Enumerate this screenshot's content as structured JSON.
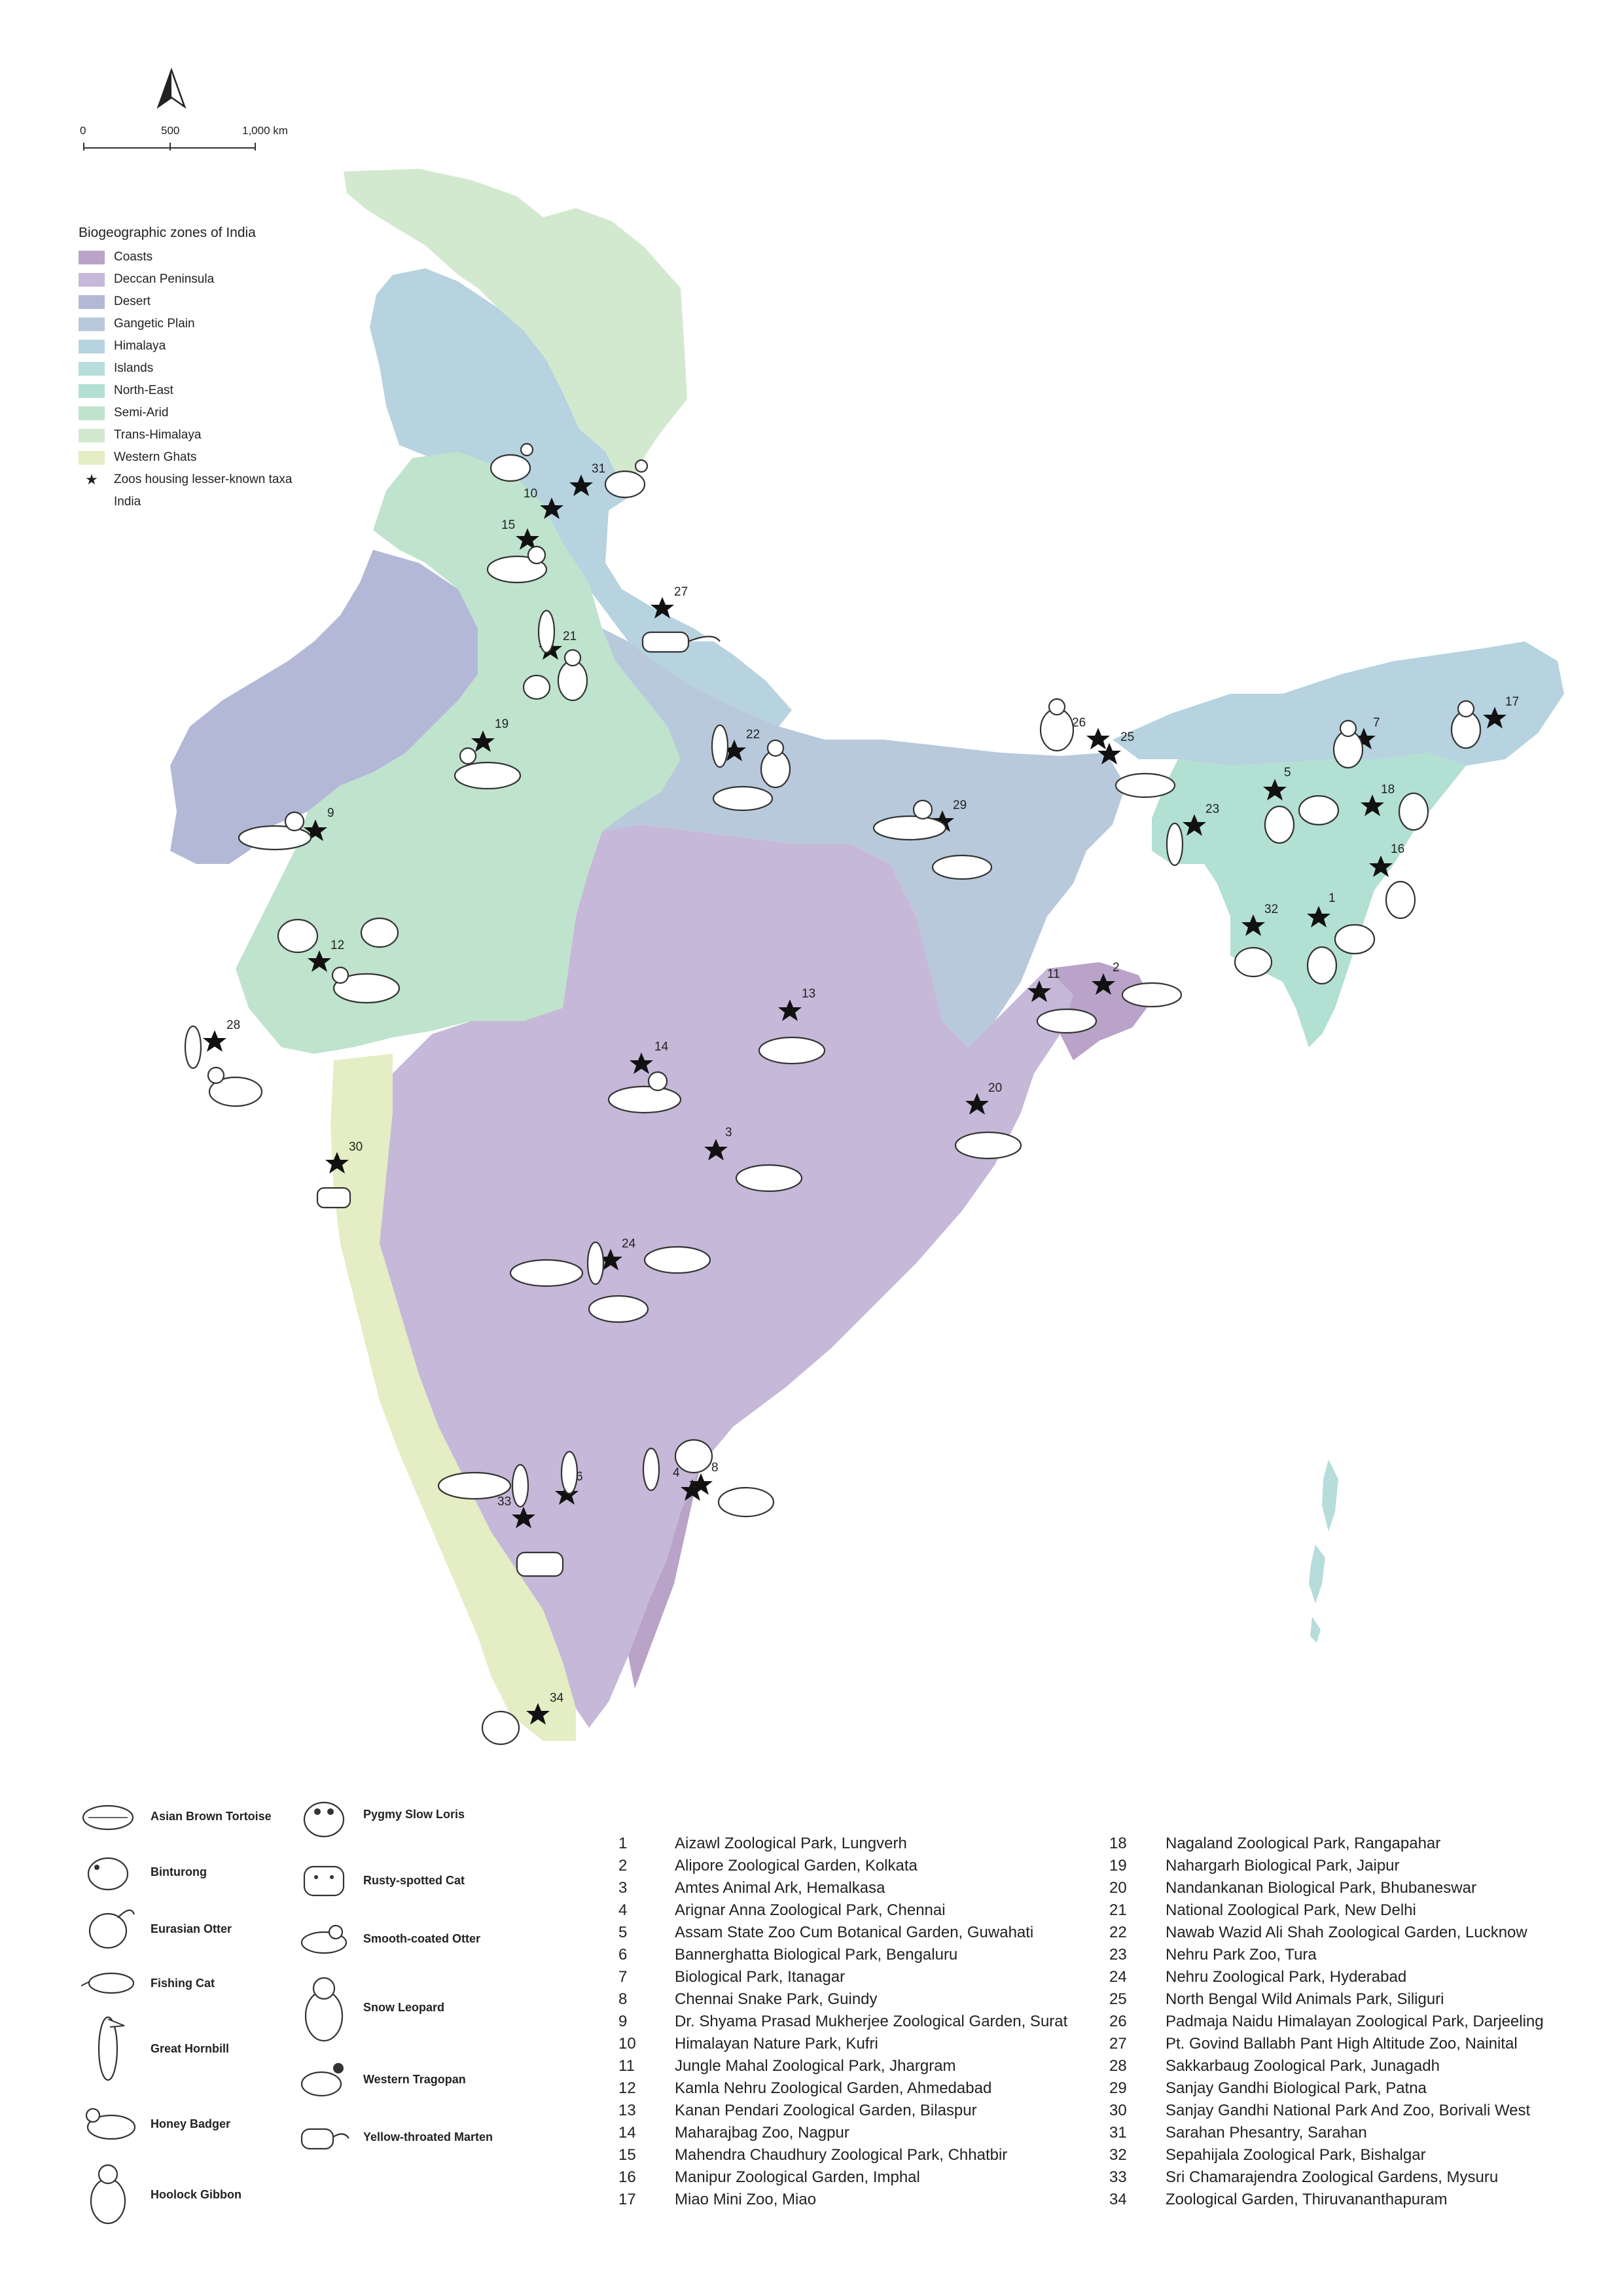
{
  "north_arrow_label": "",
  "scale_bar": {
    "labels": [
      "0",
      "500",
      "1,000 km"
    ]
  },
  "legend": {
    "title": "Biogeographic zones of India",
    "zones": [
      {
        "name": "Coasts",
        "color": "#b9a3c9"
      },
      {
        "name": "Deccan Peninsula",
        "color": "#c6b8d8"
      },
      {
        "name": "Desert",
        "color": "#b3b8d6"
      },
      {
        "name": "Gangetic Plain",
        "color": "#b8c9dc"
      },
      {
        "name": "Himalaya",
        "color": "#b6d3df"
      },
      {
        "name": "Islands",
        "color": "#b7dcdc"
      },
      {
        "name": "North-East",
        "color": "#b2e0d3"
      },
      {
        "name": "Semi-Arid",
        "color": "#bfe3cd"
      },
      {
        "name": "Trans-Himalaya",
        "color": "#d3e9cf"
      },
      {
        "name": "Western Ghats",
        "color": "#e4edc4"
      }
    ],
    "zoo_marker": "Zoos housing lesser-known taxa",
    "boundary": "India"
  },
  "markers": [
    "1",
    "2",
    "3",
    "4",
    "5",
    "6",
    "7",
    "8",
    "9",
    "10",
    "11",
    "12",
    "13",
    "14",
    "15",
    "16",
    "17",
    "18",
    "19",
    "20",
    "21",
    "22",
    "23",
    "24",
    "25",
    "26",
    "27",
    "28",
    "29",
    "30",
    "31",
    "32",
    "33",
    "34"
  ],
  "species": [
    {
      "name": "Asian Brown Tortoise",
      "icon": "tortoise-icon"
    },
    {
      "name": "Binturong",
      "icon": "binturong-icon"
    },
    {
      "name": "Eurasian Otter",
      "icon": "eurasian-otter-icon"
    },
    {
      "name": "Fishing Cat",
      "icon": "fishing-cat-icon"
    },
    {
      "name": "Great Hornbill",
      "icon": "hornbill-icon"
    },
    {
      "name": "Honey Badger",
      "icon": "honey-badger-icon"
    },
    {
      "name": "Hoolock Gibbon",
      "icon": "gibbon-icon"
    },
    {
      "name": "Pygmy Slow Loris",
      "icon": "slow-loris-icon"
    },
    {
      "name": "Rusty-spotted Cat",
      "icon": "rusty-cat-icon"
    },
    {
      "name": "Smooth-coated Otter",
      "icon": "smooth-otter-icon"
    },
    {
      "name": "Snow Leopard",
      "icon": "snow-leopard-icon"
    },
    {
      "name": "Western Tragopan",
      "icon": "tragopan-icon"
    },
    {
      "name": "Yellow-throated Marten",
      "icon": "marten-icon"
    }
  ],
  "zoos": [
    {
      "n": "1",
      "name": "Aizawl Zoological Park, Lungverh"
    },
    {
      "n": "2",
      "name": "Alipore Zoological Garden, Kolkata"
    },
    {
      "n": "3",
      "name": "Amtes Animal Ark, Hemalkasa"
    },
    {
      "n": "4",
      "name": "Arignar Anna Zoological Park,  Chennai"
    },
    {
      "n": "5",
      "name": "Assam State Zoo Cum Botanical Garden, Guwahati"
    },
    {
      "n": "6",
      "name": "Bannerghatta Biological Park, Bengaluru"
    },
    {
      "n": "7",
      "name": "Biological Park, Itanagar"
    },
    {
      "n": "8",
      "name": "Chennai Snake Park, Guindy"
    },
    {
      "n": "9",
      "name": "Dr. Shyama Prasad Mukherjee Zoological Garden, Surat"
    },
    {
      "n": "10",
      "name": "Himalayan Nature Park, Kufri"
    },
    {
      "n": "11",
      "name": "Jungle Mahal Zoological Park, Jhargram"
    },
    {
      "n": "12",
      "name": "Kamla Nehru Zoological Garden, Ahmedabad"
    },
    {
      "n": "13",
      "name": "Kanan Pendari Zoological Garden, Bilaspur"
    },
    {
      "n": "14",
      "name": "Maharajbag Zoo, Nagpur"
    },
    {
      "n": "15",
      "name": "Mahendra Chaudhury Zoological Park, Chhatbir"
    },
    {
      "n": "16",
      "name": "Manipur Zoological Garden, Imphal"
    },
    {
      "n": "17",
      "name": "Miao Mini Zoo, Miao"
    },
    {
      "n": "18",
      "name": "Nagaland Zoological Park, Rangapahar"
    },
    {
      "n": "19",
      "name": "Nahargarh Biological Park, Jaipur"
    },
    {
      "n": "20",
      "name": "Nandankanan Biological Park, Bhubaneswar"
    },
    {
      "n": "21",
      "name": "National Zoological Park, New Delhi"
    },
    {
      "n": "22",
      "name": "Nawab Wazid Ali Shah Zoological Garden, Lucknow"
    },
    {
      "n": "23",
      "name": "Nehru Park Zoo, Tura"
    },
    {
      "n": "24",
      "name": "Nehru Zoological Park, Hyderabad"
    },
    {
      "n": "25",
      "name": "North Bengal Wild Animals Park, Siliguri"
    },
    {
      "n": "26",
      "name": "Padmaja Naidu Himalayan Zoological Park, Darjeeling"
    },
    {
      "n": "27",
      "name": "Pt. Govind Ballabh Pant High Altitude Zoo, Nainital"
    },
    {
      "n": "28",
      "name": "Sakkarbaug Zoological Park, Junagadh"
    },
    {
      "n": "29",
      "name": "Sanjay Gandhi Biological Park, Patna"
    },
    {
      "n": "30",
      "name": "Sanjay Gandhi National Park And Zoo, Borivali West"
    },
    {
      "n": "31",
      "name": "Sarahan Phesantry, Sarahan"
    },
    {
      "n": "32",
      "name": "Sepahijala Zoological Park, Bishalgar"
    },
    {
      "n": "33",
      "name": "Sri Chamarajendra Zoological Gardens, Mysuru"
    },
    {
      "n": "34",
      "name": "Zoological Garden, Thiruvananthapuram"
    }
  ]
}
